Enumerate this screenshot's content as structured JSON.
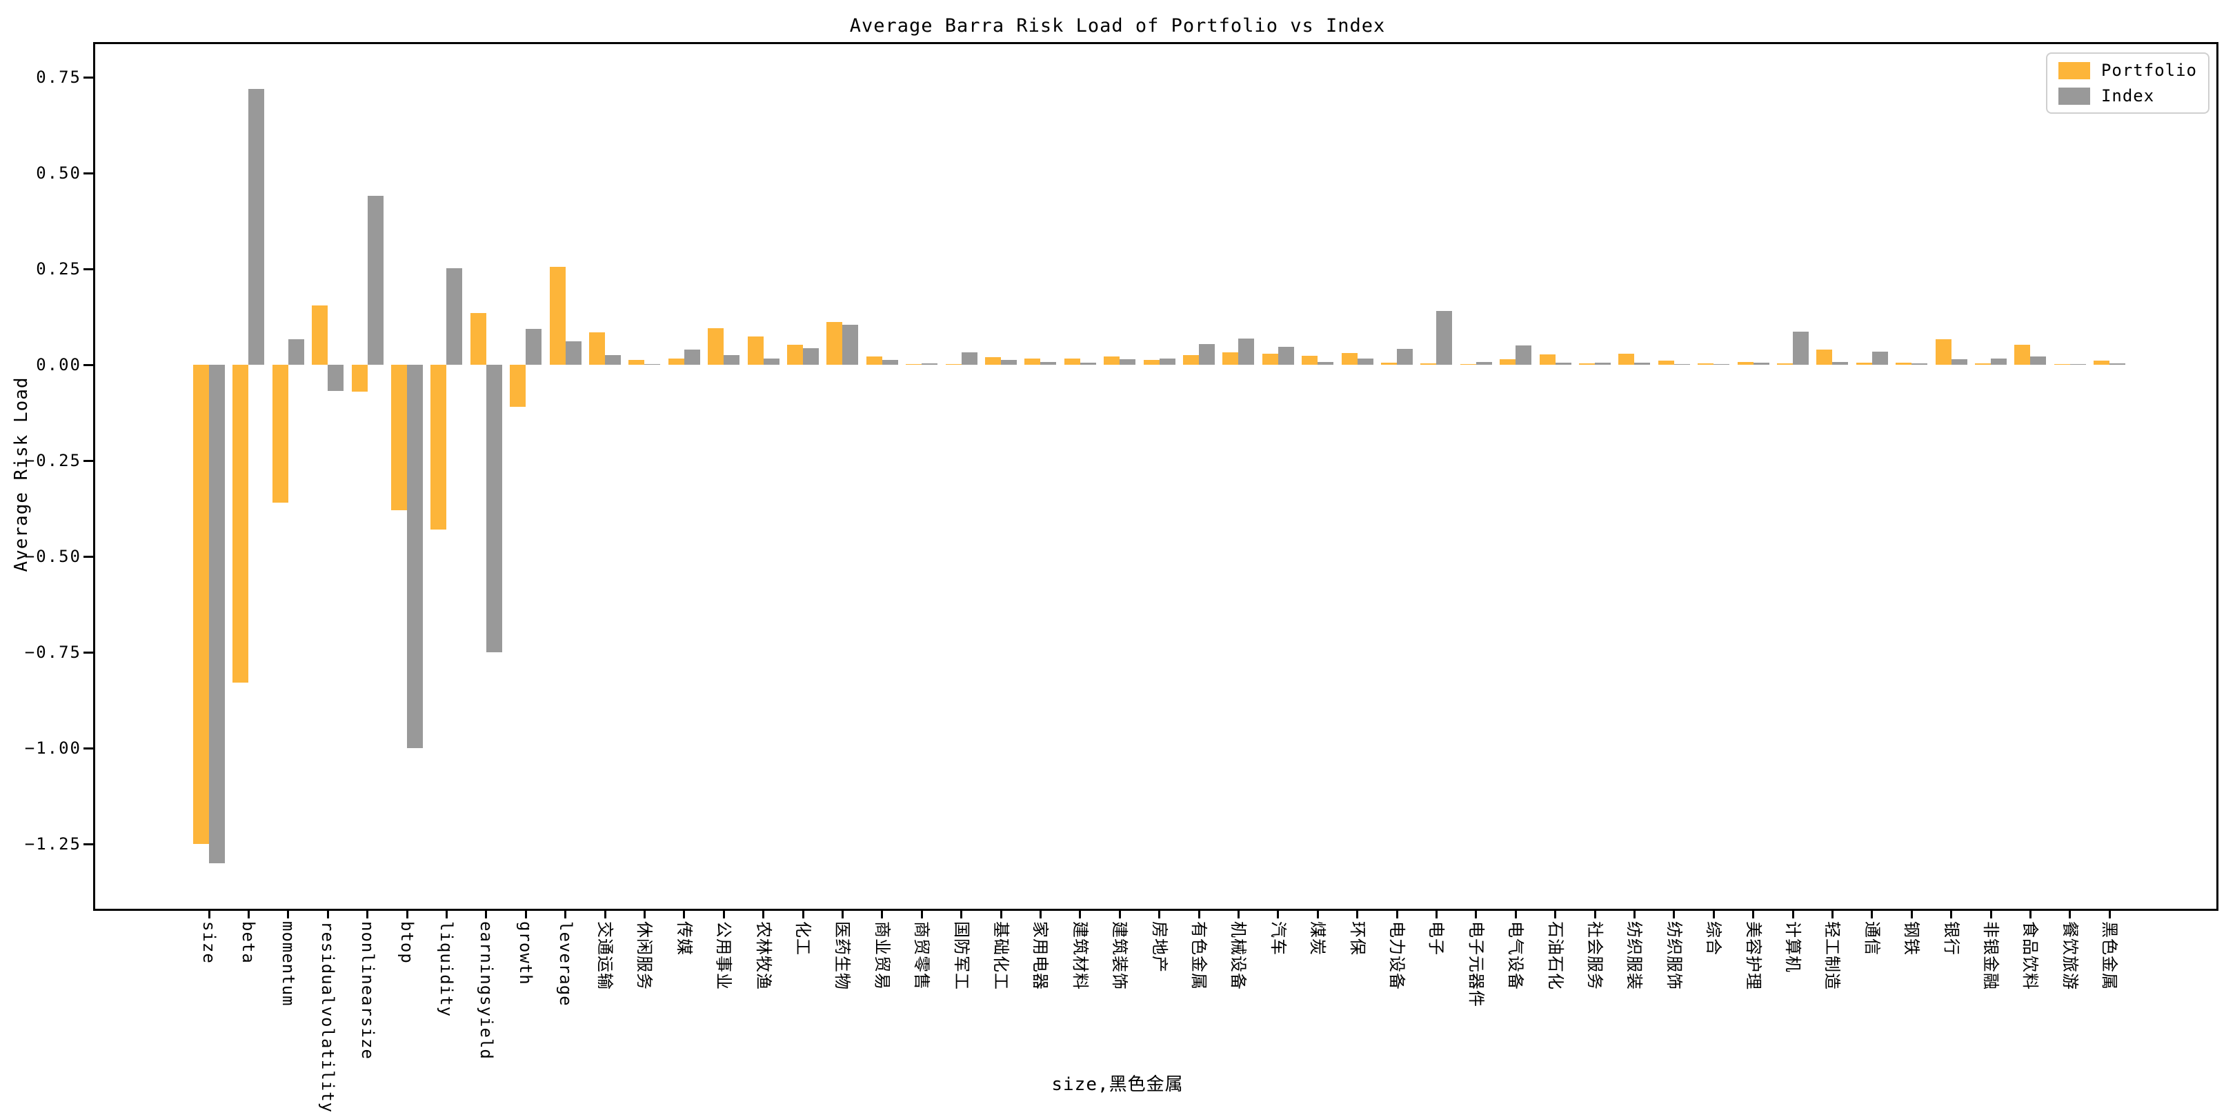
{
  "chart": {
    "title": "Average Barra Risk Load of Portfolio vs Index",
    "xlabel": "size,黑色金属",
    "ylabel": "Average Risk Load",
    "legend": {
      "portfolio_label": "Portfolio",
      "index_label": "Index"
    },
    "colors": {
      "portfolio": "#FDB53A",
      "index": "#999999"
    }
  },
  "chart_data": {
    "type": "bar",
    "title": "Average Barra Risk Load of Portfolio vs Index",
    "xlabel": "size,黑色金属",
    "ylabel": "Average Risk Load",
    "grid": false,
    "legend_position": "upper right",
    "ylim": [
      -1.42,
      0.84
    ],
    "yticks": [
      0.75,
      0.5,
      0.25,
      0.0,
      -0.25,
      -0.5,
      -0.75,
      -1.0,
      -1.25
    ],
    "ytick_labels": [
      "0.75",
      "0.50",
      "0.25",
      "0.00",
      "−0.25",
      "−0.50",
      "−0.75",
      "−1.00",
      "−1.25"
    ],
    "categories": [
      "size",
      "beta",
      "momentum",
      "residualvolatility",
      "nonlinearsize",
      "btop",
      "liquidity",
      "earningsyield",
      "growth",
      "leverage",
      "交通运输",
      "休闲服务",
      "传媒",
      "公用事业",
      "农林牧渔",
      "化工",
      "医药生物",
      "商业贸易",
      "商贸零售",
      "国防军工",
      "基础化工",
      "家用电器",
      "建筑材料",
      "建筑装饰",
      "房地产",
      "有色金属",
      "机械设备",
      "汽车",
      "煤炭",
      "环保",
      "电力设备",
      "电子",
      "电子元器件",
      "电气设备",
      "石油石化",
      "社会服务",
      "纺织服装",
      "纺织服饰",
      "综合",
      "美容护理",
      "计算机",
      "轻工制造",
      "通信",
      "钢铁",
      "银行",
      "非银金融",
      "食品饮料",
      "餐饮旅游",
      "黑色金属"
    ],
    "series": [
      {
        "name": "Portfolio",
        "color": "#FDB53A",
        "values": [
          -1.25,
          -0.83,
          -0.36,
          0.155,
          -0.07,
          -0.38,
          -0.43,
          0.135,
          -0.11,
          0.255,
          0.085,
          0.013,
          0.017,
          0.095,
          0.073,
          0.053,
          0.112,
          0.021,
          0.002,
          0.002,
          0.019,
          0.017,
          0.016,
          0.022,
          0.013,
          0.025,
          0.033,
          0.029,
          0.023,
          0.031,
          0.006,
          0.004,
          0.001,
          0.015,
          0.027,
          0.004,
          0.029,
          0.01,
          0.004,
          0.007,
          0.003,
          0.039,
          0.005,
          0.005,
          0.067,
          0.003,
          0.052,
          0.002,
          0.01
        ]
      },
      {
        "name": "Index",
        "color": "#999999",
        "values": [
          -1.3,
          0.72,
          0.067,
          -0.068,
          0.44,
          -1.0,
          0.252,
          -0.75,
          0.094,
          0.061,
          0.025,
          0.002,
          0.04,
          0.026,
          0.016,
          0.044,
          0.104,
          0.013,
          0.003,
          0.033,
          0.012,
          0.007,
          0.006,
          0.014,
          0.017,
          0.054,
          0.068,
          0.046,
          0.007,
          0.017,
          0.041,
          0.14,
          0.007,
          0.05,
          0.005,
          0.005,
          0.005,
          0.001,
          0.001,
          0.005,
          0.086,
          0.008,
          0.035,
          0.003,
          0.015,
          0.016,
          0.022,
          0.001,
          0.003
        ]
      }
    ]
  }
}
